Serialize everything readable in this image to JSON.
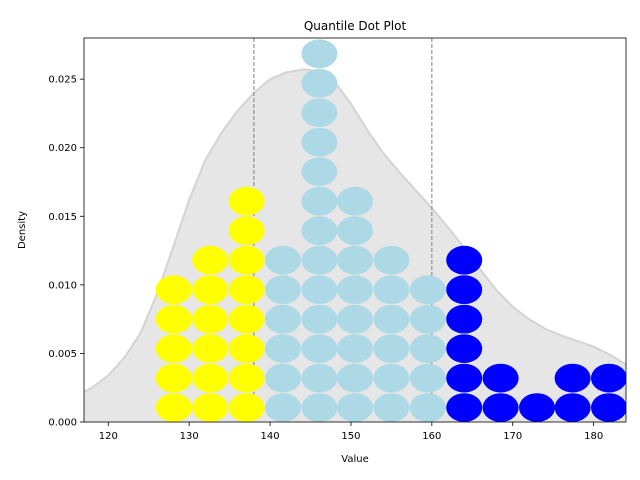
{
  "chart_data": {
    "type": "scatter",
    "title": "Quantile Dot Plot",
    "xlabel": "Value",
    "ylabel": "Density",
    "xlim": [
      117,
      184
    ],
    "ylim": [
      0,
      0.028
    ],
    "x_ticks": [
      120,
      130,
      140,
      150,
      160,
      170,
      180
    ],
    "x_tick_labels": [
      "120",
      "130",
      "140",
      "150",
      "160",
      "170",
      "180"
    ],
    "y_ticks": [
      0,
      0.005,
      0.01,
      0.015,
      0.02,
      0.025
    ],
    "y_tick_labels": [
      "0.000",
      "0.005",
      "0.010",
      "0.015",
      "0.020",
      "0.025"
    ],
    "grid": false,
    "vertical_lines": [
      138,
      160
    ],
    "density_curve": {
      "x": [
        117,
        118,
        120,
        122,
        124,
        126,
        128,
        130,
        132,
        134,
        136,
        138,
        140,
        142,
        144,
        146,
        148,
        150,
        152,
        154,
        156,
        158,
        160,
        162,
        164,
        166,
        168,
        170,
        172,
        174,
        176,
        178,
        180,
        182,
        184
      ],
      "y": [
        0.0022,
        0.0025,
        0.0034,
        0.0047,
        0.0065,
        0.0093,
        0.0127,
        0.0162,
        0.0191,
        0.0211,
        0.0227,
        0.024,
        0.025,
        0.0255,
        0.0257,
        0.0256,
        0.0248,
        0.0232,
        0.0213,
        0.0196,
        0.0182,
        0.0169,
        0.0156,
        0.0142,
        0.0127,
        0.0111,
        0.0096,
        0.0084,
        0.0075,
        0.0068,
        0.0063,
        0.0059,
        0.0055,
        0.0049,
        0.0042
      ]
    },
    "dot_radius_y": 0.00105,
    "dot_step_y": 0.00215,
    "dot_base_y": 0.00105,
    "colors": {
      "low": "#ffff00",
      "middle": "#add8e6",
      "high": "#0000ff",
      "density_fill": "#e6e6e6",
      "density_line": "#d3d3d3",
      "vline": "#808080"
    },
    "series": [
      {
        "group": "low",
        "stacks": [
          {
            "x": 128.1,
            "count": 5
          },
          {
            "x": 132.6,
            "count": 6
          },
          {
            "x": 137.1,
            "count": 8
          }
        ]
      },
      {
        "group": "middle",
        "stacks": [
          {
            "x": 141.6,
            "count": 6
          },
          {
            "x": 146.1,
            "count": 13
          },
          {
            "x": 150.5,
            "count": 8
          },
          {
            "x": 155.0,
            "count": 6
          },
          {
            "x": 159.5,
            "count": 5
          }
        ]
      },
      {
        "group": "high",
        "stacks": [
          {
            "x": 164.0,
            "count": 6
          },
          {
            "x": 168.5,
            "count": 2
          },
          {
            "x": 173.0,
            "count": 1
          },
          {
            "x": 177.4,
            "count": 2
          },
          {
            "x": 181.9,
            "count": 2
          }
        ]
      }
    ]
  }
}
